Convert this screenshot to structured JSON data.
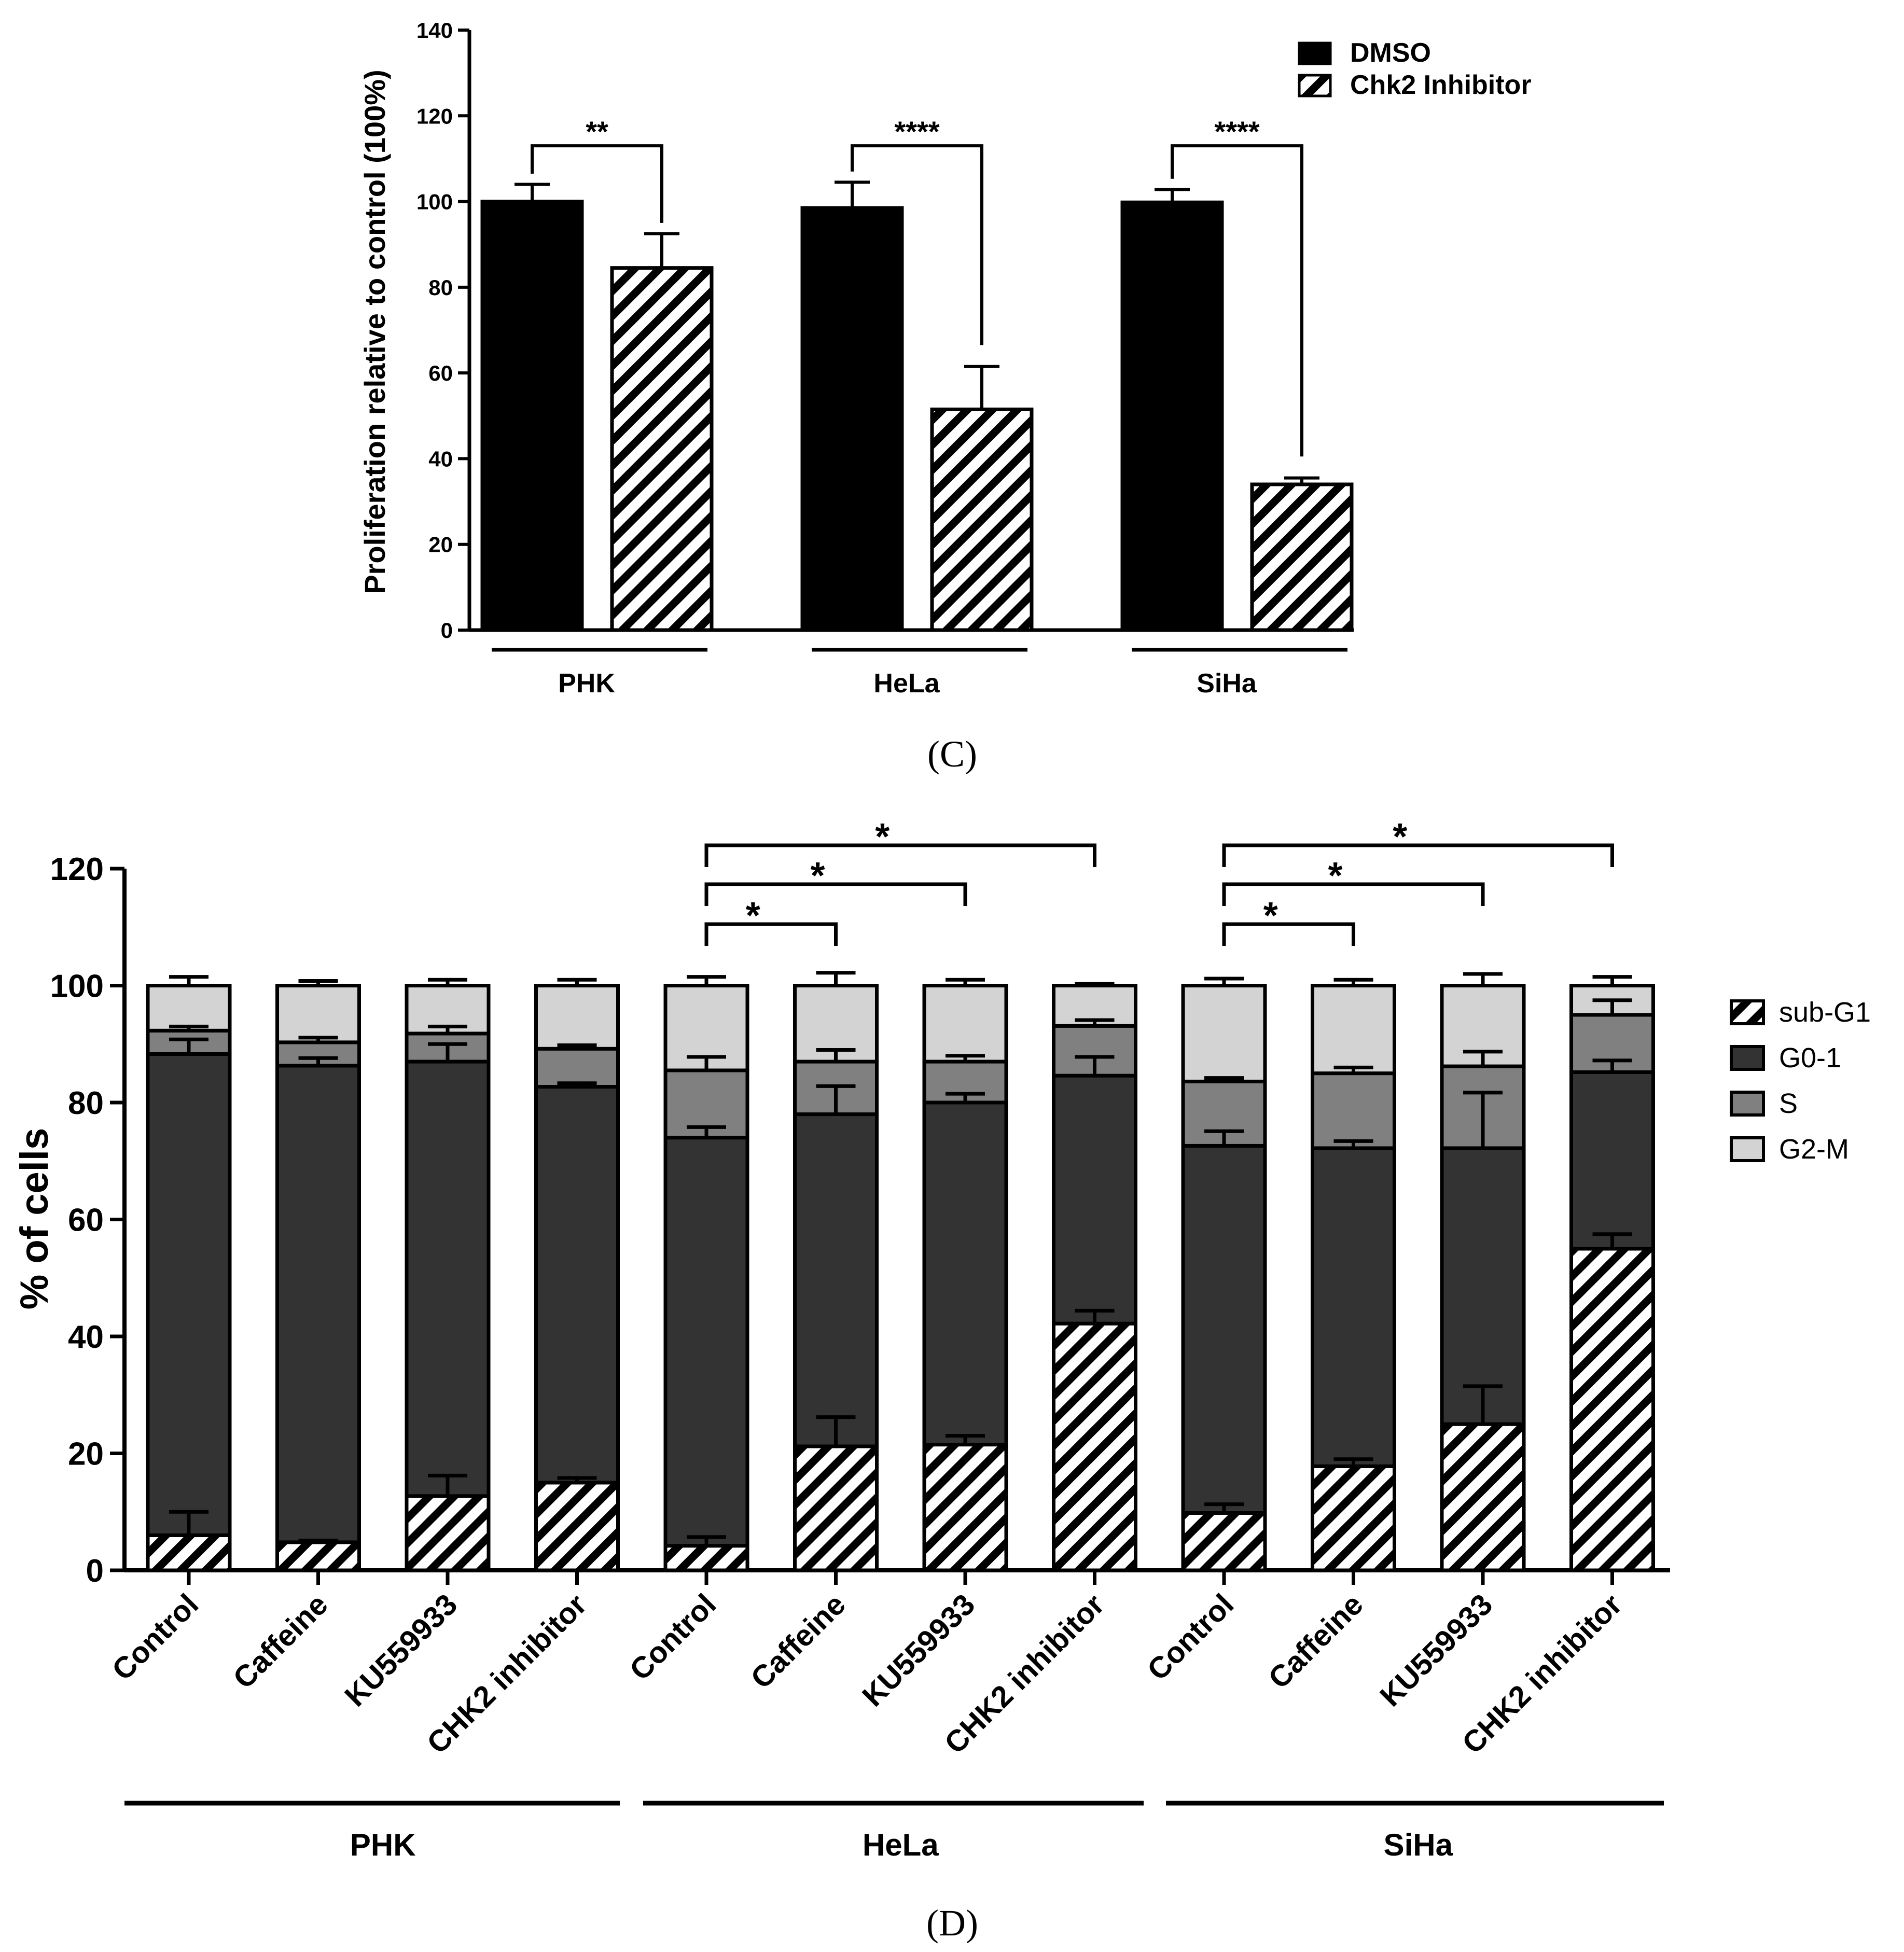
{
  "colors": {
    "ink": "#000000",
    "background": "#ffffff",
    "g01": "#333333",
    "s": "#808080",
    "g2m": "#d3d3d3"
  },
  "chart_data": [
    {
      "type": "bar",
      "panel_label": "(C)",
      "title": "",
      "xlabel": "",
      "ylabel": "Proliferation relative to control (100%)",
      "ylim": [
        0,
        140
      ],
      "yticks": [
        0,
        20,
        40,
        60,
        80,
        100,
        120,
        140
      ],
      "groups": [
        "PHK",
        "HeLa",
        "SiHa"
      ],
      "series": [
        {
          "name": "DMSO",
          "pattern": "solid",
          "values": [
            100,
            98.5,
            99.8
          ],
          "errors": [
            4,
            6,
            3
          ]
        },
        {
          "name": "Chk2 Inhibitor",
          "pattern": "hatched",
          "values": [
            84.5,
            51.5,
            34
          ],
          "errors": [
            8,
            10,
            1.5
          ]
        }
      ],
      "legend": [
        "DMSO",
        "Chk2 Inhibitor"
      ],
      "legend_position": "top-right",
      "significance": [
        "**",
        "****",
        "****"
      ]
    },
    {
      "type": "bar",
      "stacked": true,
      "panel_label": "(D)",
      "title": "",
      "xlabel": "",
      "ylabel": "% of cells",
      "ylim": [
        0,
        120
      ],
      "yticks": [
        0,
        20,
        40,
        60,
        80,
        100,
        120
      ],
      "categories": [
        "Control",
        "Caffeine",
        "KU559933",
        "CHK2 inhibitor",
        "Control",
        "Caffeine",
        "KU559933",
        "CHK2 inhibitor",
        "Control",
        "Caffeine",
        "KU559933",
        "CHK2 inhibitor"
      ],
      "groups": [
        {
          "name": "PHK",
          "start": 0,
          "end": 3
        },
        {
          "name": "HeLa",
          "start": 4,
          "end": 7
        },
        {
          "name": "SiHa",
          "start": 8,
          "end": 11
        }
      ],
      "series": [
        {
          "name": "sub-G1",
          "pattern": "hatched",
          "values": [
            6,
            4.8,
            12.7,
            15,
            4.2,
            21.2,
            21.5,
            42.2,
            9.8,
            17.8,
            25,
            55
          ],
          "errors": [
            4,
            0.3,
            3.5,
            0.8,
            1.5,
            5,
            1.5,
            2.2,
            1.5,
            1.2,
            6.5,
            2.5
          ]
        },
        {
          "name": "G0-1",
          "pattern": "solid",
          "values": [
            82.3,
            81.5,
            74.3,
            67.7,
            69.8,
            56.8,
            58.5,
            42.4,
            62.8,
            54.4,
            47.2,
            30.2
          ],
          "errors": [
            2.5,
            1.3,
            3,
            0.6,
            1.8,
            4.8,
            1.5,
            3.2,
            2.5,
            1.2,
            9.5,
            2
          ]
        },
        {
          "name": "S",
          "pattern": "solid",
          "values": [
            4,
            4,
            4.8,
            6.5,
            11.5,
            9,
            7,
            8.5,
            11,
            12.8,
            14,
            9.8
          ],
          "errors": [
            0.7,
            0.8,
            1.2,
            0.6,
            2.3,
            2,
            1,
            1,
            0.6,
            1,
            2.5,
            2.5
          ]
        },
        {
          "name": "G2-M",
          "pattern": "solid",
          "values": [
            7.7,
            9.7,
            8.2,
            10.8,
            14.5,
            13,
            13,
            6.9,
            16.4,
            15,
            13.8,
            5
          ],
          "errors": [
            1.5,
            0.8,
            1,
            1,
            1.5,
            2.2,
            1,
            0.3,
            1.2,
            1,
            2,
            1.5
          ]
        }
      ],
      "legend": [
        "sub-G1",
        "G0-1",
        "S",
        "G2-M"
      ],
      "legend_position": "right",
      "significance": [
        {
          "group": "HeLa",
          "from": 4,
          "to": 5,
          "label": "*"
        },
        {
          "group": "HeLa",
          "from": 4,
          "to": 6,
          "label": "*"
        },
        {
          "group": "HeLa",
          "from": 4,
          "to": 7,
          "label": "*"
        },
        {
          "group": "SiHa",
          "from": 8,
          "to": 9,
          "label": "*"
        },
        {
          "group": "SiHa",
          "from": 8,
          "to": 10,
          "label": "*"
        },
        {
          "group": "SiHa",
          "from": 8,
          "to": 11,
          "label": "*"
        }
      ]
    }
  ]
}
